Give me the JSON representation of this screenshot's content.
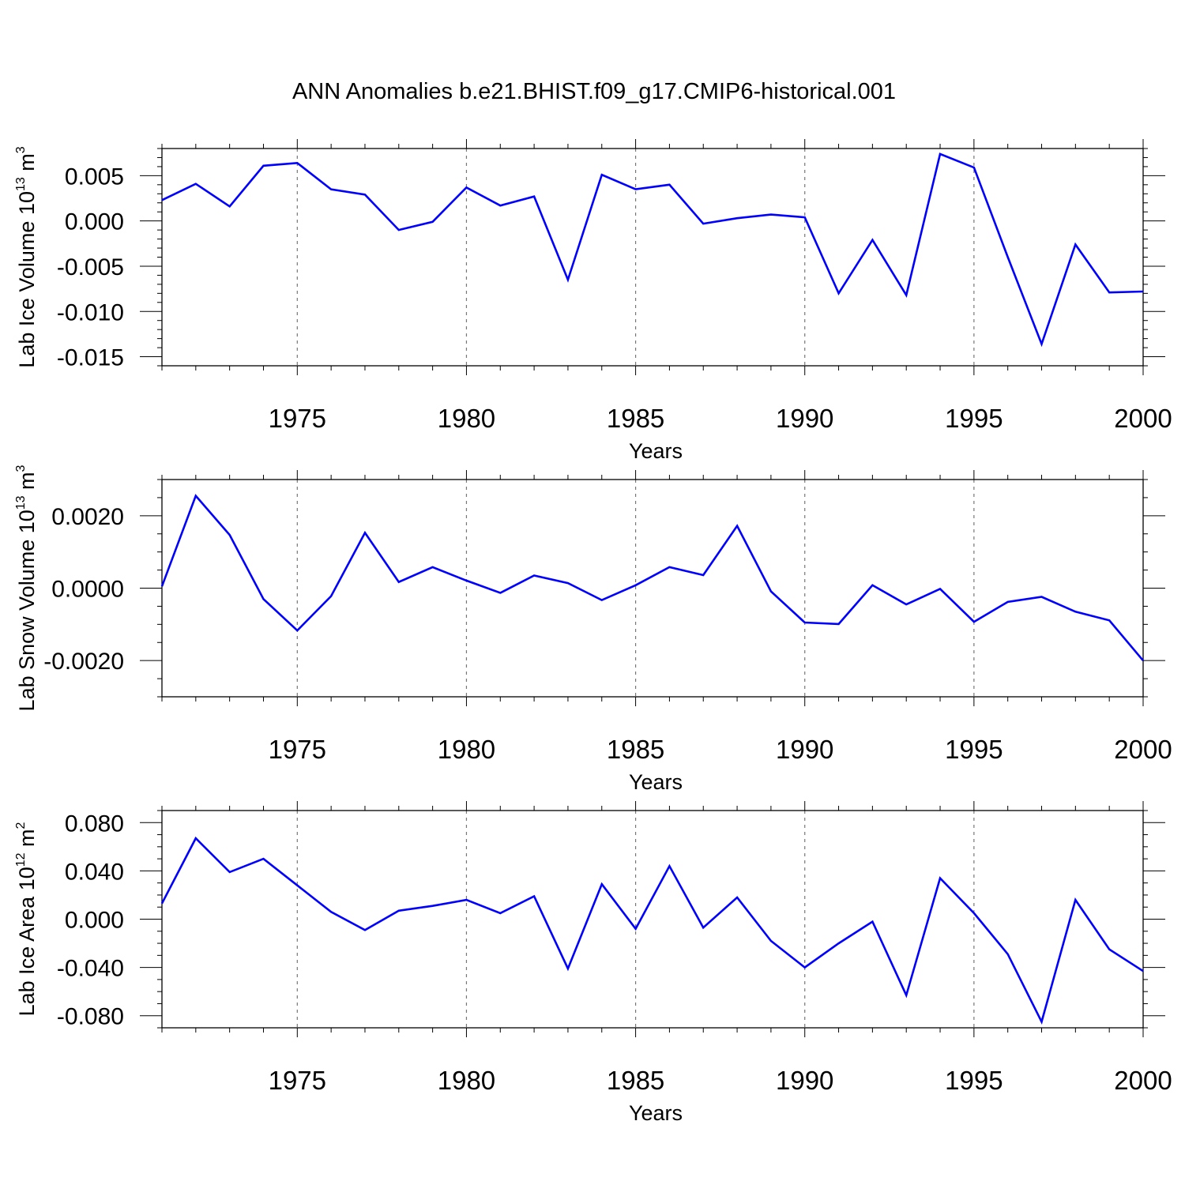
{
  "title": "ANN Anomalies b.e21.BHIST.f09_g17.CMIP6-historical.001",
  "line_color": "#0000ff",
  "chart_data": [
    {
      "type": "line",
      "title": "ANN Anomalies b.e21.BHIST.f09_g17.CMIP6-historical.001",
      "xlabel": "Years",
      "ylabel": {
        "text": "Lab Ice Volume 10",
        "exp": "13",
        "unit": " m",
        "unit_exp": "3"
      },
      "xlim": [
        1971,
        2000
      ],
      "ylim": [
        -0.016,
        0.008
      ],
      "x_ticks": [
        1975,
        1980,
        1985,
        1990,
        1995,
        2000
      ],
      "y_ticks": [
        0.005,
        0.0,
        -0.005,
        -0.01,
        -0.015
      ],
      "y_tick_labels": [
        "0.005",
        "0.000",
        "-0.005",
        "-0.010",
        "-0.015"
      ],
      "y_minor_step": 0.001,
      "x": [
        1971,
        1972,
        1973,
        1974,
        1975,
        1976,
        1977,
        1978,
        1979,
        1980,
        1981,
        1982,
        1983,
        1984,
        1985,
        1986,
        1987,
        1988,
        1989,
        1990,
        1991,
        1992,
        1993,
        1994,
        1995,
        1996,
        1997,
        1998,
        1999,
        2000
      ],
      "series": [
        {
          "name": "Lab Ice Volume",
          "values": [
            0.0023,
            0.0041,
            0.0016,
            0.0061,
            0.0064,
            0.0035,
            0.0029,
            -0.001,
            -0.0001,
            0.0037,
            0.0017,
            0.0027,
            -0.0065,
            0.0051,
            0.0035,
            0.004,
            -0.0003,
            0.0003,
            0.0007,
            0.0004,
            -0.008,
            -0.0021,
            -0.0082,
            0.0074,
            0.0059,
            -0.004,
            -0.0136,
            -0.0026,
            -0.0079,
            -0.0078
          ]
        }
      ]
    },
    {
      "type": "line",
      "xlabel": "Years",
      "ylabel": {
        "text": "Lab Snow Volume 10",
        "exp": "13",
        "unit": " m",
        "unit_exp": "3"
      },
      "xlim": [
        1971,
        2000
      ],
      "ylim": [
        -0.003,
        0.003
      ],
      "x_ticks": [
        1975,
        1980,
        1985,
        1990,
        1995,
        2000
      ],
      "y_ticks": [
        0.002,
        0.0,
        -0.002
      ],
      "y_tick_labels": [
        "0.0020",
        "0.0000",
        "-0.0020"
      ],
      "y_minor_step": 0.0005,
      "x": [
        1971,
        1972,
        1973,
        1974,
        1975,
        1976,
        1977,
        1978,
        1979,
        1980,
        1981,
        1982,
        1983,
        1984,
        1985,
        1986,
        1987,
        1988,
        1989,
        1990,
        1991,
        1992,
        1993,
        1994,
        1995,
        1996,
        1997,
        1998,
        1999,
        2000
      ],
      "series": [
        {
          "name": "Lab Snow Volume",
          "values": [
            5e-05,
            0.00255,
            0.00147,
            -0.0003,
            -0.00117,
            -0.00022,
            0.00153,
            0.00017,
            0.00058,
            0.00021,
            -0.00013,
            0.00035,
            0.00014,
            -0.00033,
            8e-05,
            0.00058,
            0.00036,
            0.00172,
            -9e-05,
            -0.00095,
            -0.00099,
            8e-05,
            -0.00045,
            -2e-05,
            -0.00093,
            -0.00038,
            -0.00024,
            -0.00065,
            -0.00089,
            -0.002
          ]
        }
      ]
    },
    {
      "type": "line",
      "xlabel": "Years",
      "ylabel": {
        "text": "Lab Ice Area 10",
        "exp": "12",
        "unit": " m",
        "unit_exp": "2"
      },
      "xlim": [
        1971,
        2000
      ],
      "ylim": [
        -0.09,
        0.09
      ],
      "x_ticks": [
        1975,
        1980,
        1985,
        1990,
        1995,
        2000
      ],
      "y_ticks": [
        0.08,
        0.04,
        0.0,
        -0.04,
        -0.08
      ],
      "y_tick_labels": [
        "0.080",
        "0.040",
        "0.000",
        "-0.040",
        "-0.080"
      ],
      "y_minor_step": 0.01,
      "x": [
        1971,
        1972,
        1973,
        1974,
        1975,
        1976,
        1977,
        1978,
        1979,
        1980,
        1981,
        1982,
        1983,
        1984,
        1985,
        1986,
        1987,
        1988,
        1989,
        1990,
        1991,
        1992,
        1993,
        1994,
        1995,
        1996,
        1997,
        1998,
        1999,
        2000
      ],
      "series": [
        {
          "name": "Lab Ice Area",
          "values": [
            0.013,
            0.067,
            0.039,
            0.05,
            0.028,
            0.006,
            -0.009,
            0.007,
            0.011,
            0.016,
            0.005,
            0.019,
            -0.041,
            0.029,
            -0.008,
            0.044,
            -0.007,
            0.018,
            -0.018,
            -0.04,
            -0.02,
            -0.002,
            -0.063,
            0.034,
            0.005,
            -0.029,
            -0.085,
            0.016,
            -0.025,
            -0.043
          ]
        }
      ]
    }
  ]
}
